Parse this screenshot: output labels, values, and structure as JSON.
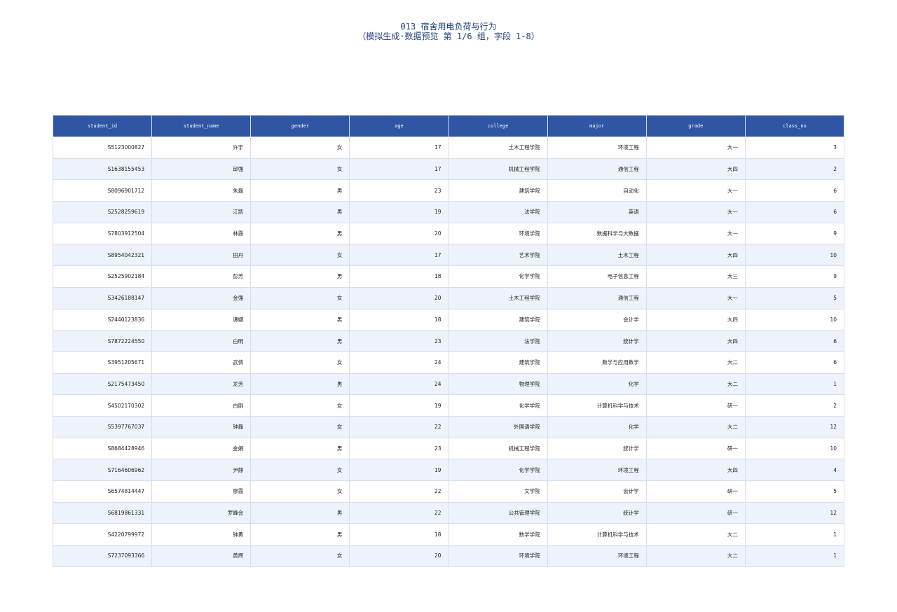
{
  "header": {
    "title": "013_宿舍用电负荷与行为",
    "subtitle": "（模拟生成·数据预览 第 1/6 组，字段 1-8）"
  },
  "table": {
    "columns": [
      "student_id",
      "student_name",
      "gender",
      "age",
      "college",
      "major",
      "grade",
      "class_no"
    ],
    "rows": [
      [
        "S5123000827",
        "许宇",
        "女",
        17,
        "土木工程学院",
        "环境工程",
        "大一",
        3
      ],
      [
        "S1638155453",
        "邱强",
        "女",
        17,
        "机械工程学院",
        "通信工程",
        "大四",
        2
      ],
      [
        "S8096901712",
        "朱磊",
        "男",
        23,
        "建筑学院",
        "自动化",
        "大一",
        6
      ],
      [
        "S2528259619",
        "江凯",
        "男",
        19,
        "法学院",
        "英语",
        "大一",
        6
      ],
      [
        "S7803912504",
        "林霞",
        "男",
        20,
        "环境学院",
        "数据科学与大数据",
        "大一",
        9
      ],
      [
        "S8954042321",
        "田丹",
        "女",
        17,
        "艺术学院",
        "土木工程",
        "大四",
        10
      ],
      [
        "S2525902184",
        "彭芳",
        "男",
        18,
        "化学学院",
        "电子信息工程",
        "大三",
        9
      ],
      [
        "S3426188147",
        "金强",
        "女",
        20,
        "土木工程学院",
        "通信工程",
        "大一",
        5
      ],
      [
        "S2440123836",
        "谭娜",
        "男",
        18,
        "建筑学院",
        "会计学",
        "大四",
        10
      ],
      [
        "S7872224550",
        "白明",
        "男",
        23,
        "法学院",
        "统计学",
        "大四",
        6
      ],
      [
        "S3951205671",
        "武倩",
        "女",
        24,
        "建筑学院",
        "数学与应用数学",
        "大二",
        6
      ],
      [
        "S2175473450",
        "龙芳",
        "男",
        24,
        "物理学院",
        "化学",
        "大二",
        1
      ],
      [
        "S4502170302",
        "白刚",
        "女",
        19,
        "化学学院",
        "计算机科学与技术",
        "研一",
        2
      ],
      [
        "S5397767037",
        "钟磊",
        "女",
        22,
        "外国语学院",
        "化学",
        "大二",
        12
      ],
      [
        "S8684428946",
        "金娟",
        "男",
        23,
        "机械工程学院",
        "统计学",
        "研一",
        10
      ],
      [
        "S7164606962",
        "尹静",
        "女",
        19,
        "化学学院",
        "环境工程",
        "大四",
        4
      ],
      [
        "S6574814447",
        "廖霞",
        "女",
        22,
        "文学院",
        "会计学",
        "研一",
        5
      ],
      [
        "S6819861331",
        "罗峰会",
        "男",
        22,
        "公共管理学院",
        "统计学",
        "研一",
        12
      ],
      [
        "S4220799972",
        "钟勇",
        "男",
        18,
        "数学学院",
        "计算机科学与技术",
        "大二",
        1
      ],
      [
        "S7237093366",
        "黄辉",
        "女",
        20,
        "环境学院",
        "环境工程",
        "大二",
        1
      ]
    ]
  }
}
